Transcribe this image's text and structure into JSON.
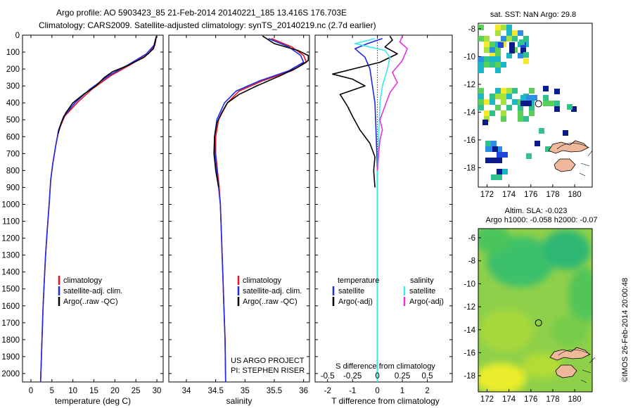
{
  "header": {
    "line1": "Argo profile: AO 5903423_85 21-Feb-2014 20140221_185 13.416S 176.703E",
    "line2": "Climatology: CARS2009. Satellite-adjusted climatology: synTS_20140219.nc (2.7d earlier)"
  },
  "side_stamp": "©IMOS 26-Feb-2014 20:00:48",
  "credits": [
    "US ARGO PROJECT",
    "PI: STEPHEN RISER"
  ],
  "colors": {
    "climatology": "#e8141e",
    "satellite": "#1e28e6",
    "argo": "#000000",
    "sal_satellite": "#3ee8ee",
    "sal_argo": "#e632d9"
  },
  "chart_data": [
    {
      "type": "line",
      "title": "",
      "xlabel": "temperature (deg C)",
      "ylabel": "",
      "xlim": [
        -2,
        31.5
      ],
      "ylim": [
        2050,
        0
      ],
      "xticks": [
        0,
        5,
        10,
        15,
        20,
        25,
        30
      ],
      "xtick_labels": [
        "0",
        "5",
        "10",
        "15",
        "20",
        "25",
        "30"
      ],
      "yticks": [
        0,
        100,
        200,
        300,
        400,
        500,
        600,
        700,
        800,
        900,
        1000,
        1100,
        1200,
        1300,
        1400,
        1500,
        1600,
        1700,
        1800,
        1900,
        2000
      ],
      "ytick_labels": [
        "0",
        "100",
        "200",
        "300",
        "400",
        "500",
        "600",
        "700",
        "800",
        "900",
        "1000",
        "1100",
        "1200",
        "1300",
        "1400",
        "1500",
        "1600",
        "1700",
        "1800",
        "1900",
        "2000"
      ],
      "legend": [
        "climatology",
        "satellite-adj. clim.",
        "Argo(..raw -QC)"
      ],
      "series": [
        {
          "name": "climatology",
          "color": "#e8141e",
          "points": [
            [
              29.8,
              20
            ],
            [
              29.5,
              60
            ],
            [
              28,
              110
            ],
            [
              24,
              170
            ],
            [
              19,
              240
            ],
            [
              14.5,
              320
            ],
            [
              11,
              400
            ],
            [
              8,
              480
            ],
            [
              6.7,
              560
            ],
            [
              6,
              640
            ],
            [
              5.2,
              760
            ],
            [
              4.7,
              860
            ],
            [
              4.4,
              980
            ],
            [
              3.9,
              1150
            ],
            [
              3.5,
              1300
            ],
            [
              3.2,
              1450
            ],
            [
              2.9,
              1600
            ],
            [
              2.7,
              1750
            ],
            [
              2.5,
              1900
            ],
            [
              2.3,
              2050
            ]
          ]
        },
        {
          "name": "satellite-adj. clim.",
          "color": "#1e28e6",
          "points": [
            [
              29.7,
              20
            ],
            [
              29.3,
              60
            ],
            [
              27.5,
              110
            ],
            [
              23.5,
              170
            ],
            [
              18.5,
              240
            ],
            [
              14,
              320
            ],
            [
              10.5,
              400
            ],
            [
              7.8,
              480
            ],
            [
              6.6,
              560
            ],
            [
              6,
              640
            ],
            [
              5.2,
              760
            ],
            [
              4.7,
              860
            ],
            [
              4.4,
              980
            ],
            [
              3.9,
              1150
            ],
            [
              3.5,
              1300
            ],
            [
              3.2,
              1450
            ],
            [
              2.9,
              1600
            ],
            [
              2.7,
              1750
            ],
            [
              2.5,
              1900
            ],
            [
              2.3,
              2050
            ]
          ]
        },
        {
          "name": "Argo(..raw -QC)",
          "color": "#000000",
          "points": [
            [
              29.9,
              5
            ],
            [
              29.6,
              40
            ],
            [
              29.2,
              80
            ],
            [
              27,
              130
            ],
            [
              23,
              180
            ],
            [
              19.5,
              215
            ],
            [
              17.5,
              250
            ],
            [
              15.5,
              300
            ],
            [
              12.5,
              350
            ],
            [
              10,
              400
            ],
            [
              8.3,
              460
            ],
            [
              7.2,
              520
            ],
            [
              6.5,
              580
            ]
          ]
        }
      ]
    },
    {
      "type": "line",
      "title": "",
      "xlabel": "salinity",
      "ylabel": "",
      "xlim": [
        33.7,
        36.1
      ],
      "ylim": [
        2050,
        0
      ],
      "xticks": [
        34,
        34.5,
        35,
        35.5,
        36
      ],
      "xtick_labels": [
        "34",
        "34.5",
        "35",
        "35.5",
        "36"
      ],
      "legend": [
        "climatology",
        "satellite-adj. clim.",
        "Argo(..raw -QC)"
      ],
      "series": [
        {
          "name": "climatology",
          "color": "#e8141e",
          "points": [
            [
              35.45,
              20
            ],
            [
              35.8,
              70
            ],
            [
              36.0,
              120
            ],
            [
              36.05,
              160
            ],
            [
              35.8,
              210
            ],
            [
              35.3,
              270
            ],
            [
              34.9,
              330
            ],
            [
              34.7,
              400
            ],
            [
              34.55,
              500
            ],
            [
              34.5,
              600
            ],
            [
              34.5,
              700
            ],
            [
              34.53,
              800
            ],
            [
              34.56,
              900
            ],
            [
              34.58,
              1000
            ],
            [
              34.6,
              1200
            ],
            [
              34.62,
              1400
            ],
            [
              34.64,
              1600
            ],
            [
              34.66,
              1800
            ],
            [
              34.67,
              2050
            ]
          ]
        },
        {
          "name": "satellite-adj. clim.",
          "color": "#1e28e6",
          "points": [
            [
              35.4,
              20
            ],
            [
              35.75,
              70
            ],
            [
              35.95,
              120
            ],
            [
              36.0,
              160
            ],
            [
              35.75,
              210
            ],
            [
              35.25,
              270
            ],
            [
              34.85,
              330
            ],
            [
              34.65,
              400
            ],
            [
              34.52,
              500
            ],
            [
              34.48,
              600
            ],
            [
              34.49,
              700
            ],
            [
              34.52,
              800
            ],
            [
              34.55,
              900
            ],
            [
              34.58,
              1000
            ],
            [
              34.6,
              1200
            ],
            [
              34.62,
              1400
            ],
            [
              34.64,
              1600
            ],
            [
              34.66,
              1800
            ],
            [
              34.67,
              2050
            ]
          ]
        },
        {
          "name": "Argo(..raw -QC)",
          "color": "#000000",
          "points": [
            [
              35.3,
              5
            ],
            [
              35.5,
              50
            ],
            [
              35.9,
              90
            ],
            [
              36.08,
              120
            ],
            [
              36.08,
              150
            ],
            [
              35.9,
              190
            ],
            [
              35.6,
              240
            ],
            [
              35.2,
              300
            ],
            [
              34.9,
              350
            ],
            [
              34.7,
              400
            ],
            [
              34.6,
              460
            ],
            [
              34.52,
              520
            ],
            [
              34.48,
              600
            ],
            [
              34.47,
              700
            ],
            [
              34.5,
              800
            ],
            [
              34.55,
              900
            ]
          ]
        }
      ]
    },
    {
      "type": "line",
      "title": "",
      "xlabel": "T difference from climatology",
      "ylabel": "",
      "xlim": [
        -2.5,
        3
      ],
      "ylim": [
        2050,
        0
      ],
      "xticks": [
        -2,
        -1,
        0,
        1,
        2
      ],
      "xtick_labels": [
        "-2",
        "-1",
        "0",
        "1",
        "2"
      ],
      "second_xlabel": "S difference from climatology",
      "second_xtick_labels": [
        "-0.5",
        "-0.25",
        "0",
        "0.25",
        "0.5"
      ],
      "second_xticks_T": [
        -2,
        -1,
        0,
        1,
        2
      ],
      "legend_groups": [
        {
          "heading": "temperature",
          "entries": [
            "satellite",
            "Argo(-adj)"
          ]
        },
        {
          "heading": "salinity",
          "entries": [
            "satellite",
            "Argo(-adj)"
          ]
        }
      ],
      "series": [
        {
          "name": "temperature satellite",
          "color": "#1e28e6",
          "points": [
            [
              0.2,
              20
            ],
            [
              -0.4,
              50
            ],
            [
              -0.9,
              80
            ],
            [
              -0.5,
              130
            ],
            [
              -0.3,
              200
            ],
            [
              -0.2,
              300
            ],
            [
              -0.1,
              400
            ],
            [
              -0.05,
              600
            ],
            [
              0,
              800
            ],
            [
              0,
              1000
            ],
            [
              0,
              1500
            ],
            [
              0,
              2050
            ]
          ]
        },
        {
          "name": "temperature Argo(-adj)",
          "color": "#000000",
          "points": [
            [
              0.5,
              5
            ],
            [
              0.6,
              30
            ],
            [
              0.3,
              70
            ],
            [
              0.8,
              110
            ],
            [
              0.1,
              160
            ],
            [
              -1.8,
              230
            ],
            [
              -1.0,
              260
            ],
            [
              -0.5,
              300
            ],
            [
              -1.5,
              350
            ],
            [
              -1.2,
              420
            ],
            [
              -1.0,
              480
            ],
            [
              -0.7,
              560
            ],
            [
              -0.3,
              640
            ],
            [
              -0.1,
              720
            ],
            [
              -0.15,
              800
            ],
            [
              -0.1,
              900
            ]
          ]
        },
        {
          "name": "salinity satellite",
          "color": "#3ee8ee",
          "points": [
            [
              -0.1,
              20
            ],
            [
              -0.9,
              50
            ],
            [
              0.3,
              90
            ],
            [
              0.5,
              130
            ],
            [
              0.4,
              200
            ],
            [
              0.2,
              300
            ],
            [
              0.1,
              400
            ],
            [
              0.05,
              600
            ],
            [
              0,
              800
            ],
            [
              0,
              1000
            ],
            [
              0,
              2050
            ]
          ]
        },
        {
          "name": "salinity Argo(-adj)",
          "color": "#e632d9",
          "points": [
            [
              1.0,
              5
            ],
            [
              0.9,
              40
            ],
            [
              1.2,
              80
            ],
            [
              1.0,
              150
            ],
            [
              0.6,
              220
            ],
            [
              0.8,
              280
            ],
            [
              0.5,
              340
            ],
            [
              0.3,
              420
            ],
            [
              0.1,
              500
            ],
            [
              0.2,
              560
            ],
            [
              0.1,
              620
            ],
            [
              0.05,
              700
            ],
            [
              0,
              800
            ]
          ]
        }
      ]
    }
  ],
  "maps": {
    "sst": {
      "title": "sat. SST: NaN Argo: 29.8",
      "xticks": [
        "172",
        "174",
        "176",
        "178",
        "180"
      ],
      "yticks": [
        "-8",
        "-10",
        "-12",
        "-14",
        "-16",
        "-18"
      ],
      "float_lon": 176.7,
      "float_lat": -13.4
    },
    "sla": {
      "title_line1": "Altim. SLA: -0.023",
      "title_line2": "Argo h1000: -0.058 h2000: -0.07",
      "xticks": [
        "172",
        "174",
        "176",
        "178",
        "180"
      ],
      "yticks": [
        "-6",
        "-8",
        "-10",
        "-12",
        "-14",
        "-16",
        "-18"
      ],
      "float_lon": 176.7,
      "float_lat": -13.4
    }
  }
}
